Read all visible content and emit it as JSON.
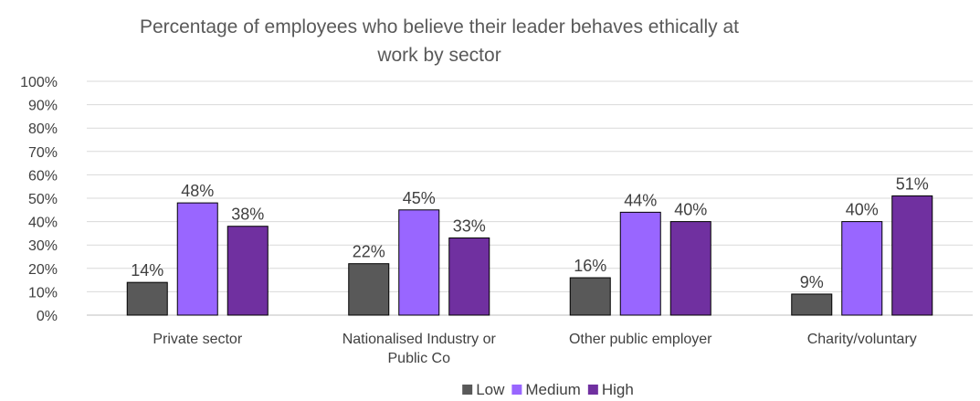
{
  "chart_data": {
    "type": "bar",
    "title_lines": [
      "Percentage of  employees who believe their leader behaves ethically at",
      "work by sector"
    ],
    "categories": [
      [
        "Private sector"
      ],
      [
        "Nationalised Industry or",
        "Public Co"
      ],
      [
        "Other public employer"
      ],
      [
        "Charity/voluntary"
      ]
    ],
    "series": [
      {
        "name": "Low",
        "color": "#595959",
        "values": [
          14,
          22,
          16,
          9
        ],
        "labels": [
          "14%",
          "22%",
          "16%",
          "9%"
        ]
      },
      {
        "name": "Medium",
        "color": "#9966ff",
        "values": [
          48,
          45,
          44,
          40
        ],
        "labels": [
          "48%",
          "45%",
          "44%",
          "40%"
        ]
      },
      {
        "name": "High",
        "color": "#7030a0",
        "values": [
          38,
          33,
          40,
          51
        ],
        "labels": [
          "38%",
          "33%",
          "40%",
          "51%"
        ]
      }
    ],
    "ylim": [
      0,
      100
    ],
    "y_ticks": [
      "0%",
      "10%",
      "20%",
      "30%",
      "40%",
      "50%",
      "60%",
      "70%",
      "80%",
      "90%",
      "100%"
    ],
    "grid": true,
    "legend_position": "bottom"
  }
}
